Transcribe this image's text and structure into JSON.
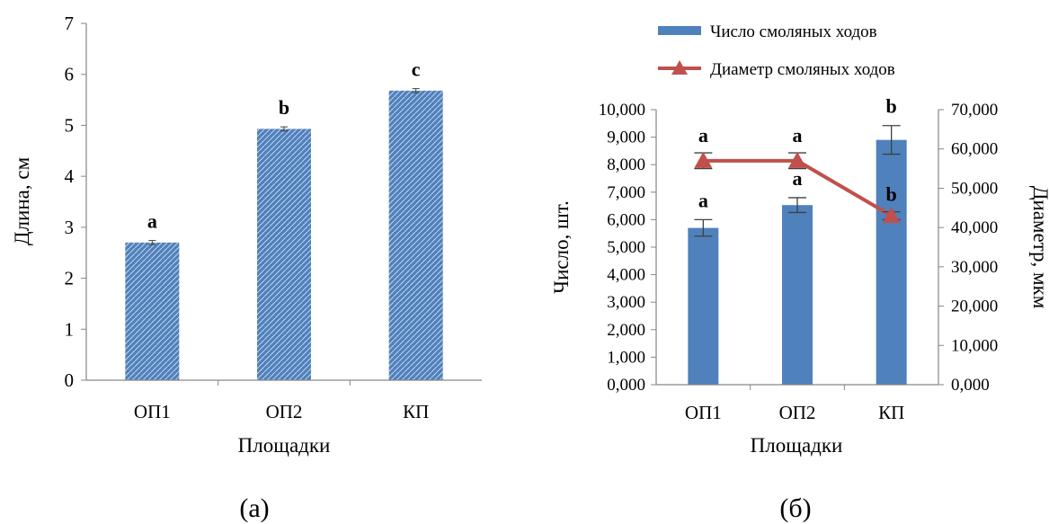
{
  "colors": {
    "bar": "#4f81bd",
    "line": "#c0504d",
    "axis": "#868686",
    "text": "#000000"
  },
  "captions": {
    "left": "(а)",
    "right": "(б)"
  },
  "chart_data": [
    {
      "type": "bar",
      "categories": [
        "ОП1",
        "ОП2",
        "КП"
      ],
      "values": [
        2.7,
        4.93,
        5.68
      ],
      "errors": [
        0.04,
        0.04,
        0.04
      ],
      "significance_labels": [
        "a",
        "b",
        "c"
      ],
      "xlabel": "Площадки",
      "ylabel": "Длина, см",
      "ylim": [
        0,
        7
      ],
      "yticks": [
        "0",
        "1",
        "2",
        "3",
        "4",
        "5",
        "6",
        "7"
      ],
      "bar_pattern": "hatched",
      "grid": false
    },
    {
      "type": "bar",
      "categories": [
        "ОП1",
        "ОП2",
        "КП"
      ],
      "series": [
        {
          "name": "Число смоляных ходов",
          "type": "bar",
          "axis": "left",
          "values": [
            5.7,
            6.53,
            8.9
          ],
          "errors": [
            0.3,
            0.27,
            0.52
          ],
          "significance_labels": [
            "a",
            "a",
            "b"
          ]
        },
        {
          "name": "Диаметр смоляных ходов",
          "type": "line",
          "marker": "triangle",
          "axis": "right",
          "values": [
            57.0,
            57.0,
            43.0
          ],
          "errors": [
            2.0,
            2.0,
            1.0
          ],
          "significance_labels": [
            "a",
            "a",
            "b"
          ]
        }
      ],
      "xlabel": "Площадки",
      "ylabel": "Число, шт.",
      "y2label": "Диаметр, мкм",
      "ylim": [
        0,
        10
      ],
      "y2lim": [
        0,
        70
      ],
      "yticks": [
        "0,000",
        "1,000",
        "2,000",
        "3,000",
        "4,000",
        "5,000",
        "6,000",
        "7,000",
        "8,000",
        "9,000",
        "10,000"
      ],
      "y2ticks": [
        "0,000",
        "10,000",
        "20,000",
        "30,000",
        "40,000",
        "50,000",
        "60,000",
        "70,000"
      ],
      "legend_position": "top",
      "grid": false
    }
  ]
}
